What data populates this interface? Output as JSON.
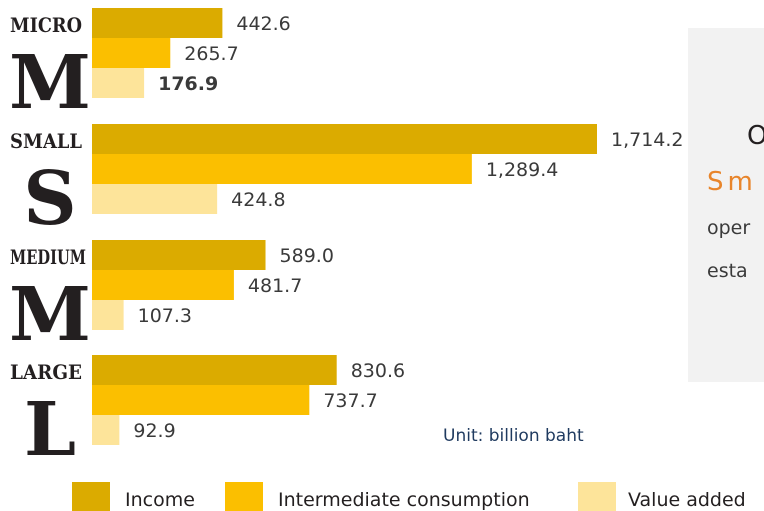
{
  "colors": {
    "income": "#dbab00",
    "intermediate": "#fbbf00",
    "value_added": "#fde49a",
    "highlight": "#e8852b",
    "text": "#3a3a3a",
    "unit": "#1f3a5f",
    "panel": "#f2f2f2"
  },
  "chart_data": {
    "type": "bar",
    "orientation": "horizontal",
    "categories": [
      {
        "name": "MICRO",
        "letter": "M",
        "letter_color": "#231f20"
      },
      {
        "name": "SMALL",
        "letter": "S",
        "letter_color": "#13324d"
      },
      {
        "name": "MEDIUM",
        "letter": "M",
        "letter_color": "#231f20"
      },
      {
        "name": "LARGE",
        "letter": "L",
        "letter_color": "#231f20"
      }
    ],
    "series": [
      {
        "name": "Income",
        "values": [
          442.6,
          1714.2,
          589.0,
          830.6
        ],
        "labels": [
          "442.6",
          "1,714.2",
          "589.0",
          "830.6"
        ]
      },
      {
        "name": "Intermediate consumption",
        "values": [
          265.7,
          1289.4,
          481.7,
          737.7
        ],
        "labels": [
          "265.7",
          "1,289.4",
          "481.7",
          "737.7"
        ]
      },
      {
        "name": "Value added",
        "values": [
          176.9,
          424.8,
          107.3,
          92.9
        ],
        "labels": [
          "176.9",
          "424.8",
          "107.3",
          "92.9"
        ]
      }
    ],
    "highlighted_label": {
      "category": "MICRO",
      "series": "Value added"
    },
    "unit": "Unit: billion baht",
    "legend_position": "bottom"
  },
  "side_panel": {
    "lines": [
      "O",
      "Sm",
      "oper",
      "esta"
    ]
  }
}
